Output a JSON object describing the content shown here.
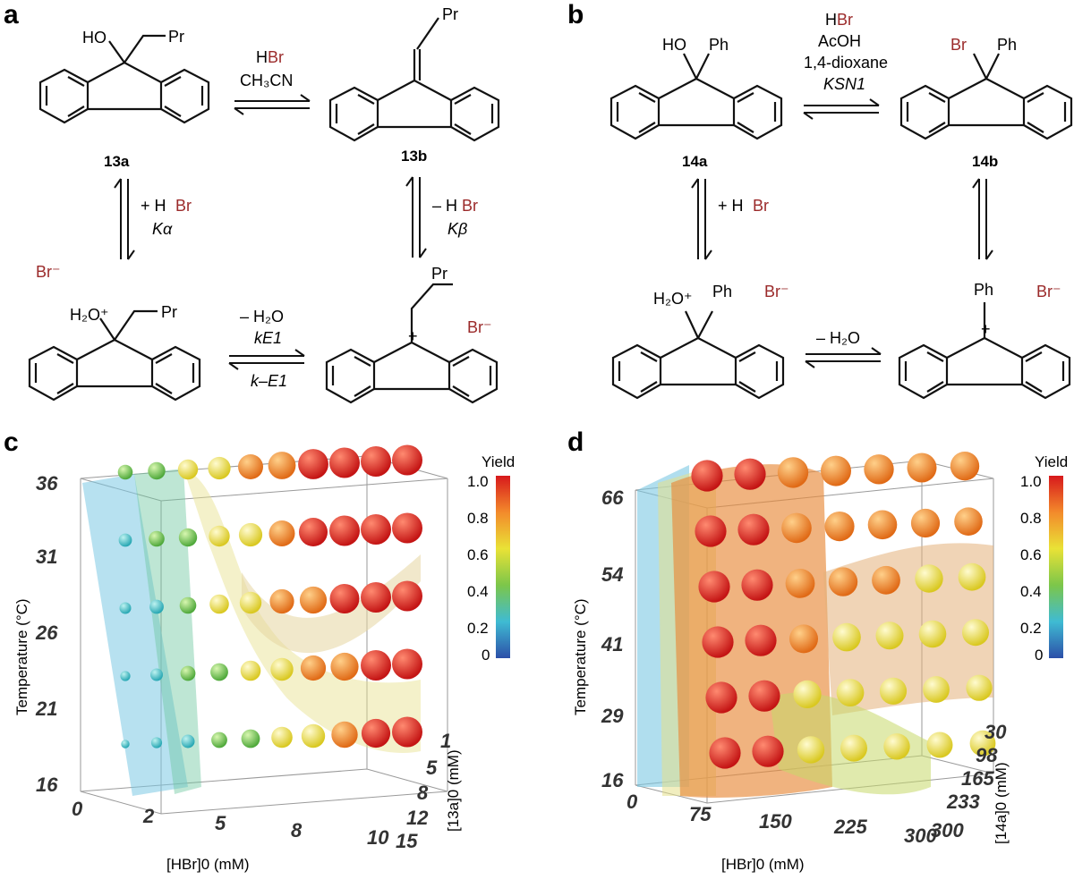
{
  "panels": {
    "a": "a",
    "b": "b",
    "c": "c",
    "d": "d"
  },
  "scheme_a": {
    "top_left": {
      "sub1": "HO",
      "sub2": "Pr",
      "id": "13a"
    },
    "top_right": {
      "sub": "Pr",
      "id": "13b"
    },
    "bottom_left": {
      "counter": "Br⁻",
      "sub1": "H₂O⁺",
      "sub2": "Pr"
    },
    "bottom_right": {
      "sub": "Pr",
      "counter": "Br⁻",
      "charge": "+"
    },
    "arrow_top": {
      "reagent_H": "H",
      "reagent_Br": "Br",
      "solvent": "CH₃CN"
    },
    "arrow_left": {
      "line1_plus": "+ H",
      "line1_Br": "Br",
      "line2": "Kα"
    },
    "arrow_right": {
      "line1_minus": "– H",
      "line1_Br": "Br",
      "line2": "Kβ"
    },
    "arrow_bottom": {
      "line1": "– H₂O",
      "line2": "kE1",
      "line3": "k–E1"
    }
  },
  "scheme_b": {
    "top_left": {
      "sub1": "HO",
      "sub2": "Ph",
      "id": "14a"
    },
    "top_right": {
      "sub1": "Br",
      "sub2": "Ph",
      "id": "14b"
    },
    "bottom_left": {
      "sub1": "H₂O⁺",
      "sub2": "Ph",
      "counter": "Br⁻"
    },
    "bottom_right": {
      "sub": "Ph",
      "counter": "Br⁻",
      "charge": "+"
    },
    "arrow_top": {
      "reagent_H": "H",
      "reagent_Br": "Br",
      "line2": "AcOH",
      "line3": "1,4-dioxane",
      "line4": "KSN1"
    },
    "arrow_left": {
      "line1_plus": "+ H",
      "line1_Br": "Br"
    },
    "arrow_bottom": {
      "line1": "– H₂O"
    }
  },
  "chart_data": [
    {
      "type": "scatter",
      "panel": "c",
      "title": "",
      "xlabel": "[HBr]0 (mM)",
      "ylabel": "Temperature (°C)",
      "zlabel": "[13a]0 (mM)",
      "colorbar_label": "Yield",
      "colorbar_ticks": [
        "1.0",
        "0.8",
        "0.6",
        "0.4",
        "0.2",
        "0"
      ],
      "x_ticks": [
        "0",
        "2",
        "5",
        "8",
        "10"
      ],
      "y_ticks": [
        "36",
        "31",
        "26",
        "21",
        "16"
      ],
      "z_ticks": [
        "1",
        "5",
        "8",
        "12",
        "15"
      ]
    },
    {
      "type": "scatter",
      "panel": "d",
      "title": "",
      "xlabel": "[HBr]0 (mM)",
      "ylabel": "Temperature (°C)",
      "zlabel": "[14a]0 (mM)",
      "colorbar_label": "Yield",
      "colorbar_ticks": [
        "1.0",
        "0.8",
        "0.6",
        "0.4",
        "0.2",
        "0"
      ],
      "x_ticks": [
        "0",
        "75",
        "150",
        "225",
        "300"
      ],
      "y_ticks": [
        "66",
        "54",
        "41",
        "29",
        "16"
      ],
      "z_ticks": [
        "30",
        "98",
        "165",
        "233",
        "300"
      ]
    }
  ]
}
